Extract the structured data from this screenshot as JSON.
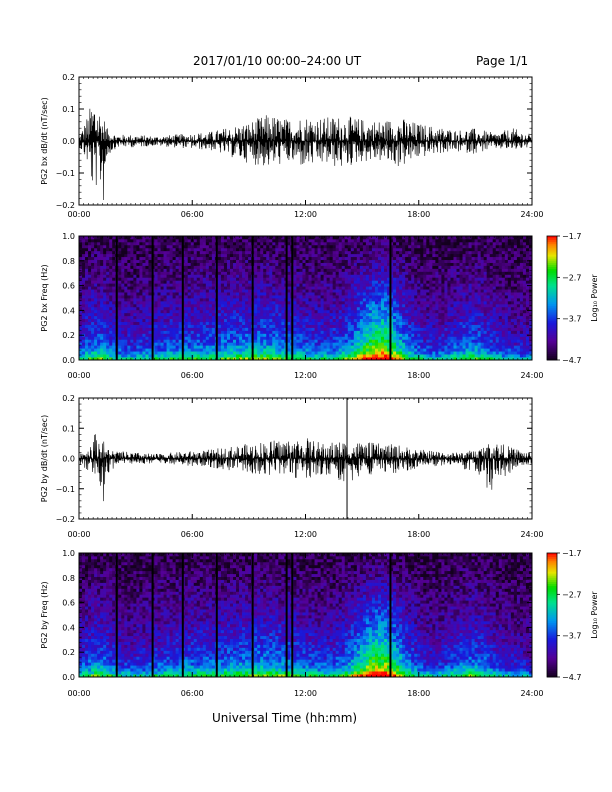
{
  "header": {
    "title": "2017/01/10  00:00–24:00 UT",
    "page": "Page 1/1"
  },
  "footer": {
    "xlabel": "Universal Time (hh:mm)"
  },
  "colors": {
    "axis": "#000000",
    "trace": "#000000",
    "background": "#ffffff"
  },
  "chart_data": [
    {
      "type": "line",
      "ylabel": "PG2 bx dB/dt (nT/sec)",
      "xlim": [
        0,
        24
      ],
      "ylim": [
        -0.2,
        0.2
      ],
      "xticks": [
        "00:00",
        "06:00",
        "12:00",
        "18:00",
        "24:00"
      ],
      "yticks": [
        "−0.2",
        "−0.1",
        "0.0",
        "0.1",
        "0.2"
      ],
      "series": [
        {
          "color": "#000000",
          "envelope": {
            "x": [
              0,
              0.5,
              0.8,
              1.0,
              1.3,
              1.5,
              2,
              3,
              4,
              5,
              6,
              7,
              8,
              9,
              10,
              11,
              12,
              13,
              14,
              15,
              16,
              17,
              18,
              19,
              20,
              21,
              22,
              23,
              24
            ],
            "upper": [
              0.015,
              0.09,
              0.15,
              0.12,
              0.08,
              0.04,
              0.02,
              0.02,
              0.015,
              0.02,
              0.025,
              0.03,
              0.045,
              0.06,
              0.085,
              0.07,
              0.08,
              0.075,
              0.08,
              0.07,
              0.065,
              0.075,
              0.055,
              0.045,
              0.035,
              0.04,
              0.025,
              0.04,
              0.02
            ],
            "lower": [
              -0.015,
              -0.08,
              -0.19,
              -0.12,
              -0.2,
              -0.05,
              -0.02,
              -0.02,
              -0.015,
              -0.02,
              -0.025,
              -0.03,
              -0.05,
              -0.07,
              -0.085,
              -0.07,
              -0.085,
              -0.075,
              -0.09,
              -0.065,
              -0.065,
              -0.085,
              -0.055,
              -0.04,
              -0.035,
              -0.04,
              -0.025,
              -0.03,
              -0.02
            ]
          }
        }
      ]
    },
    {
      "type": "heatmap",
      "ylabel": "PG2 bx Freq (Hz)",
      "xlim": [
        0,
        24
      ],
      "ylim": [
        0,
        1.0
      ],
      "xticks": [
        "00:00",
        "06:00",
        "12:00",
        "18:00",
        "24:00"
      ],
      "yticks": [
        "0.0",
        "0.2",
        "0.4",
        "0.6",
        "0.8",
        "1.0"
      ],
      "colorbar": {
        "label": "Log₁₀ Power",
        "range": [
          -4.7,
          -1.7
        ],
        "ticks": [
          "−1.7",
          "−2.7",
          "−3.7",
          "−4.7"
        ]
      },
      "data_gaps_utc_hours": [
        2.0,
        3.9,
        5.5,
        7.3,
        9.2,
        11.0,
        11.3,
        16.5
      ]
    },
    {
      "type": "line",
      "ylabel": "PG2 by dB/dt (nT/sec)",
      "xlim": [
        0,
        24
      ],
      "ylim": [
        -0.2,
        0.2
      ],
      "xticks": [
        "00:00",
        "06:00",
        "12:00",
        "18:00",
        "24:00"
      ],
      "yticks": [
        "−0.2",
        "−0.1",
        "0.0",
        "0.1",
        "0.2"
      ],
      "series": [
        {
          "color": "#000000",
          "envelope": {
            "x": [
              0,
              0.5,
              0.8,
              1.0,
              1.3,
              1.5,
              2,
              3,
              4,
              5,
              6,
              7,
              8,
              9,
              10,
              11,
              12,
              13,
              14,
              15,
              16,
              17,
              18,
              19,
              20,
              21,
              22,
              23,
              24
            ],
            "upper": [
              0.02,
              0.04,
              0.09,
              0.08,
              0.06,
              0.035,
              0.025,
              0.02,
              0.015,
              0.02,
              0.025,
              0.03,
              0.04,
              0.05,
              0.06,
              0.065,
              0.07,
              0.05,
              0.06,
              0.055,
              0.05,
              0.045,
              0.03,
              0.025,
              0.02,
              0.03,
              0.06,
              0.035,
              0.02
            ],
            "lower": [
              -0.02,
              -0.04,
              -0.08,
              -0.06,
              -0.16,
              -0.05,
              -0.025,
              -0.02,
              -0.015,
              -0.02,
              -0.025,
              -0.03,
              -0.04,
              -0.05,
              -0.055,
              -0.06,
              -0.07,
              -0.05,
              -0.09,
              -0.06,
              -0.05,
              -0.05,
              -0.03,
              -0.025,
              -0.02,
              -0.06,
              -0.12,
              -0.035,
              -0.02
            ]
          },
          "spikes_utc_hours": [
            14.2
          ]
        }
      ]
    },
    {
      "type": "heatmap",
      "ylabel": "PG2 by Freq (Hz)",
      "xlim": [
        0,
        24
      ],
      "ylim": [
        0,
        1.0
      ],
      "xticks": [
        "00:00",
        "06:00",
        "12:00",
        "18:00",
        "24:00"
      ],
      "yticks": [
        "0.0",
        "0.2",
        "0.4",
        "0.6",
        "0.8",
        "1.0"
      ],
      "colorbar": {
        "label": "Log₁₀ Power",
        "range": [
          -4.7,
          -1.7
        ],
        "ticks": [
          "−1.7",
          "−2.7",
          "−3.7",
          "−4.7"
        ]
      },
      "data_gaps_utc_hours": [
        2.0,
        3.9,
        5.5,
        7.3,
        9.2,
        11.0,
        11.3,
        16.5
      ]
    }
  ]
}
